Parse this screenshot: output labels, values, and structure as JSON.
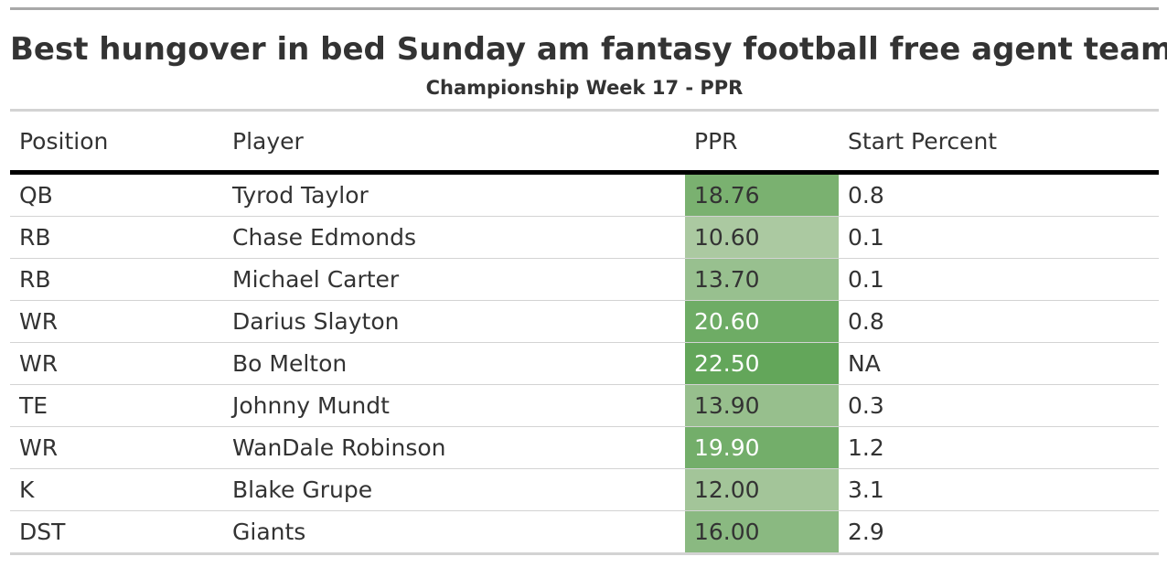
{
  "title": "Best hungover in bed Sunday am fantasy football free agent team",
  "subtitle": "Championship Week 17 - PPR",
  "columns": {
    "position": "Position",
    "player": "Player",
    "ppr": "PPR",
    "start_percent": "Start Percent"
  },
  "rows": [
    {
      "position": "QB",
      "player": "Tyrod Taylor",
      "ppr": "18.76",
      "start_percent": "0.8"
    },
    {
      "position": "RB",
      "player": "Chase Edmonds",
      "ppr": "10.60",
      "start_percent": "0.1"
    },
    {
      "position": "RB",
      "player": "Michael Carter",
      "ppr": "13.70",
      "start_percent": "0.1"
    },
    {
      "position": "WR",
      "player": "Darius Slayton",
      "ppr": "20.60",
      "start_percent": "0.8"
    },
    {
      "position": "WR",
      "player": "Bo Melton",
      "ppr": "22.50",
      "start_percent": "NA"
    },
    {
      "position": "TE",
      "player": "Johnny Mundt",
      "ppr": "13.90",
      "start_percent": "0.3"
    },
    {
      "position": "WR",
      "player": "WanDale Robinson",
      "ppr": "19.90",
      "start_percent": "1.2"
    },
    {
      "position": "K",
      "player": "Blake Grupe",
      "ppr": "12.00",
      "start_percent": "3.1"
    },
    {
      "position": "DST",
      "player": "Giants",
      "ppr": "16.00",
      "start_percent": "2.9"
    }
  ],
  "colors": {
    "ppr_low": "#abc9a1",
    "ppr_high": "#63a65a",
    "header_rule": "#000000",
    "row_rule": "#d3d3d3"
  }
}
